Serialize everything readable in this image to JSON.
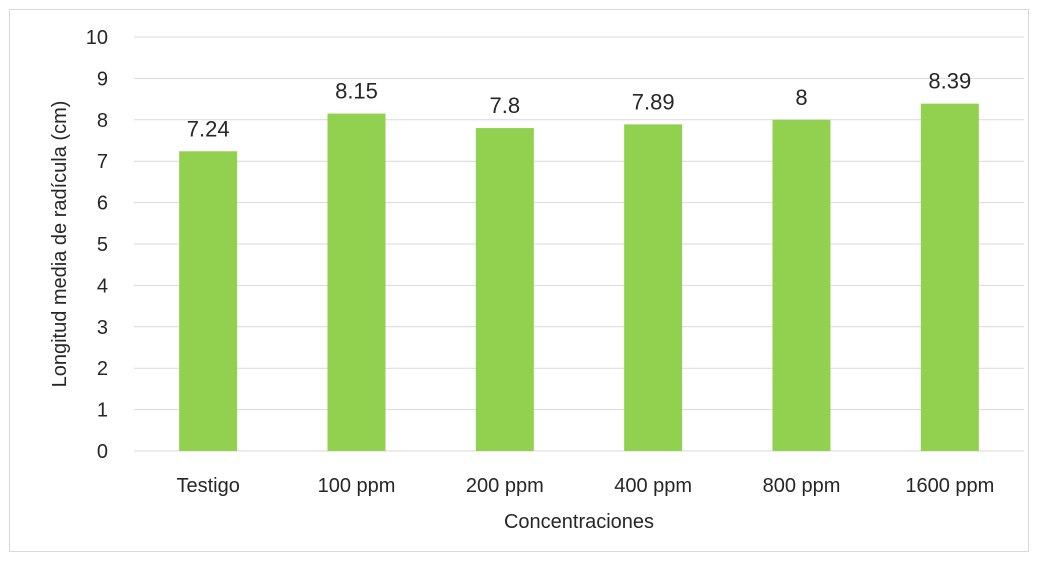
{
  "chart_data": {
    "type": "bar",
    "title": "",
    "categories": [
      "Testigo",
      "100 ppm",
      "200 ppm",
      "400 ppm",
      "800 ppm",
      "1600 ppm"
    ],
    "values": [
      7.24,
      8.15,
      7.8,
      7.89,
      8,
      8.39
    ],
    "data_labels": [
      "7.24",
      "8.15",
      "7.8",
      "7.89",
      "8",
      "8.39"
    ],
    "xlabel": "Concentraciones",
    "ylabel": "Longitud  media de radícula  (cm)",
    "ylim": [
      0,
      10
    ],
    "yticks": [
      0,
      1,
      2,
      3,
      4,
      5,
      6,
      7,
      8,
      9,
      10
    ],
    "grid": true,
    "legend": "none",
    "bar_color": "#92d050",
    "gridline_color": "#d9d9d9"
  }
}
